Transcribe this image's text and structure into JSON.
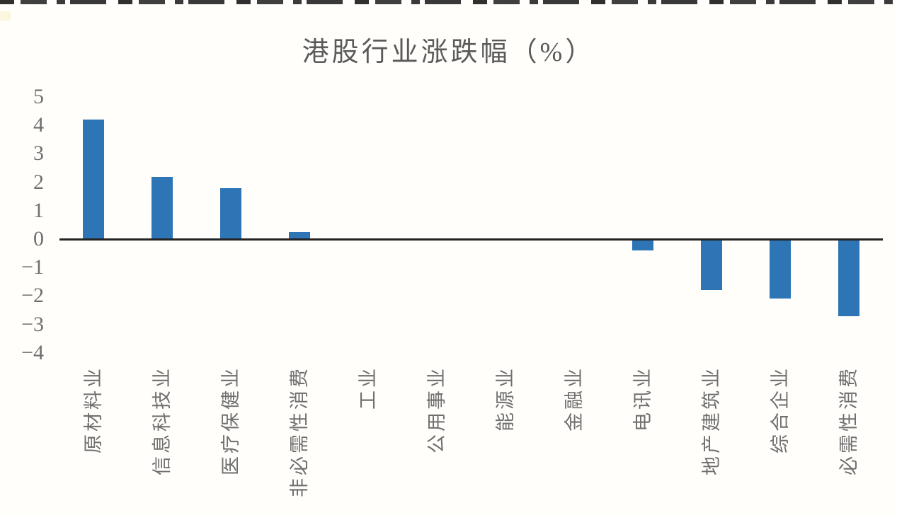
{
  "chart_data": {
    "type": "bar",
    "title": "港股行业涨跌幅（%）",
    "categories": [
      "原材料业",
      "信息科技业",
      "医疗保健业",
      "非必需性消费",
      "工业",
      "公用事业",
      "能源业",
      "金融业",
      "电讯业",
      "地产建筑业",
      "综合企业",
      "必需性消费"
    ],
    "values": [
      4.2,
      2.2,
      1.8,
      0.25,
      0,
      0,
      0,
      0,
      -0.4,
      -1.8,
      -2.1,
      -2.7
    ],
    "xlabel": "",
    "ylabel": "",
    "ylim": [
      -4.5,
      5.5
    ],
    "yticks": [
      5,
      4,
      3,
      2,
      1,
      0,
      -1,
      -2,
      -3,
      -4
    ],
    "grid": false,
    "legend": "none",
    "bar_color": "#2E75B6",
    "axis_color": "#242424",
    "tick_color": "#6f6f6f",
    "label_color": "#6f6f6f",
    "title_color": "#5a5a5a"
  }
}
